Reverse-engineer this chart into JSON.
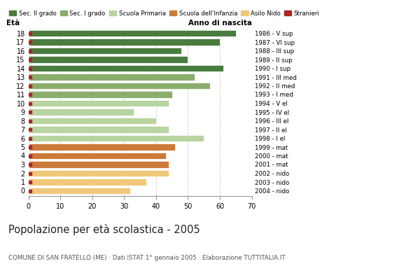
{
  "ages": [
    18,
    17,
    16,
    15,
    14,
    13,
    12,
    11,
    10,
    9,
    8,
    7,
    6,
    5,
    4,
    3,
    2,
    1,
    0
  ],
  "values": [
    65,
    60,
    48,
    50,
    61,
    52,
    57,
    45,
    44,
    33,
    40,
    44,
    55,
    46,
    43,
    44,
    44,
    37,
    32
  ],
  "birth_years": [
    "1986 - V sup",
    "1987 - VI sup",
    "1988 - III sup",
    "1989 - II sup",
    "1990 - I sup",
    "1991 - III med",
    "1992 - II med",
    "1993 - I med",
    "1994 - V el",
    "1995 - IV el",
    "1996 - III el",
    "1997 - II el",
    "1998 - I el",
    "1999 - mat",
    "2000 - mat",
    "2001 - mat",
    "2002 - nido",
    "2003 - nido",
    "2004 - nido"
  ],
  "bar_colors": [
    "#4a7c3f",
    "#4a7c3f",
    "#4a7c3f",
    "#4a7c3f",
    "#4a7c3f",
    "#8aad6e",
    "#8aad6e",
    "#8aad6e",
    "#b8d4a0",
    "#b8d4a0",
    "#b8d4a0",
    "#b8d4a0",
    "#b8d4a0",
    "#cc7a3a",
    "#cc7a3a",
    "#cc7a3a",
    "#f0c87a",
    "#f0c87a",
    "#f0c87a"
  ],
  "stranieri_color": "#b22222",
  "legend_labels": [
    "Sec. II grado",
    "Sec. I grado",
    "Scuola Primaria",
    "Scuola dell'Infanzia",
    "Asilo Nido",
    "Stranieri"
  ],
  "legend_colors": [
    "#4a7c3f",
    "#8aad6e",
    "#b8d4a0",
    "#cc7a3a",
    "#f0c87a",
    "#b22222"
  ],
  "title": "Popolazione per età scolastica - 2005",
  "subtitle": "COMUNE DI SAN FRATELLO (ME) · Dati ISTAT 1° gennaio 2005 · Elaborazione TUTTITALIA.IT",
  "xlabel_age": "Età",
  "xlabel_year": "Anno di nascita",
  "xlim": [
    0,
    70
  ],
  "xticks": [
    0,
    10,
    20,
    30,
    40,
    50,
    60,
    70
  ],
  "bar_height": 0.75,
  "background_color": "#ffffff",
  "grid_color": "#cccccc"
}
